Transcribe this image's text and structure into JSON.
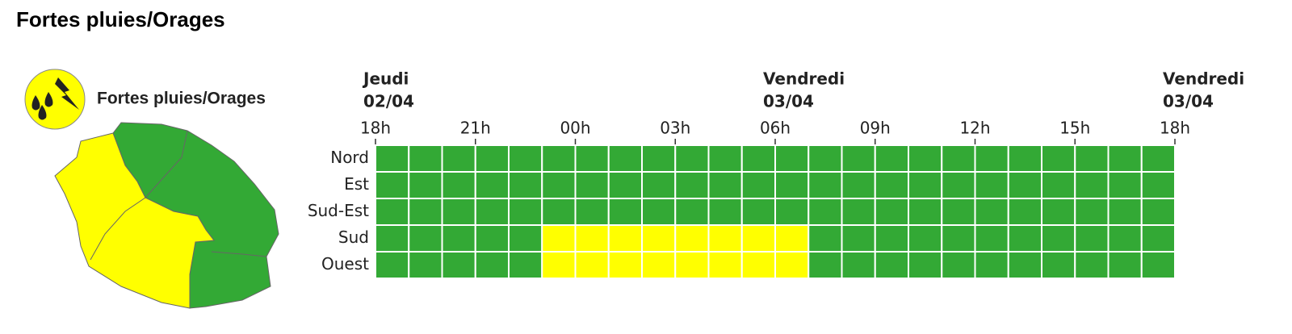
{
  "header": {
    "title": "Fortes pluies/Orages"
  },
  "legend": {
    "label": "Fortes pluies/Orages"
  },
  "days": [
    {
      "day": "Jeudi",
      "date": "02/04"
    },
    {
      "day": "Vendredi",
      "date": "03/04"
    },
    {
      "day": "Vendredi",
      "date": "03/04"
    }
  ],
  "hours": [
    "18h",
    "21h",
    "00h",
    "03h",
    "06h",
    "09h",
    "12h",
    "15h",
    "18h"
  ],
  "rows": [
    {
      "name": "Nord",
      "cells": [
        "#33a935",
        "#33a935",
        "#33a935",
        "#33a935",
        "#33a935",
        "#33a935",
        "#33a935",
        "#33a935",
        "#33a935",
        "#33a935",
        "#33a935",
        "#33a935",
        "#33a935",
        "#33a935",
        "#33a935",
        "#33a935",
        "#33a935",
        "#33a935",
        "#33a935",
        "#33a935",
        "#33a935",
        "#33a935",
        "#33a935",
        "#33a935"
      ]
    },
    {
      "name": "Est",
      "cells": [
        "#33a935",
        "#33a935",
        "#33a935",
        "#33a935",
        "#33a935",
        "#33a935",
        "#33a935",
        "#33a935",
        "#33a935",
        "#33a935",
        "#33a935",
        "#33a935",
        "#33a935",
        "#33a935",
        "#33a935",
        "#33a935",
        "#33a935",
        "#33a935",
        "#33a935",
        "#33a935",
        "#33a935",
        "#33a935",
        "#33a935",
        "#33a935"
      ]
    },
    {
      "name": "Sud-Est",
      "cells": [
        "#33a935",
        "#33a935",
        "#33a935",
        "#33a935",
        "#33a935",
        "#33a935",
        "#33a935",
        "#33a935",
        "#33a935",
        "#33a935",
        "#33a935",
        "#33a935",
        "#33a935",
        "#33a935",
        "#33a935",
        "#33a935",
        "#33a935",
        "#33a935",
        "#33a935",
        "#33a935",
        "#33a935",
        "#33a935",
        "#33a935",
        "#33a935"
      ]
    },
    {
      "name": "Sud",
      "cells": [
        "#33a935",
        "#33a935",
        "#33a935",
        "#33a935",
        "#33a935",
        "#ffff00",
        "#ffff00",
        "#ffff00",
        "#ffff00",
        "#ffff00",
        "#ffff00",
        "#ffff00",
        "#ffff00",
        "#33a935",
        "#33a935",
        "#33a935",
        "#33a935",
        "#33a935",
        "#33a935",
        "#33a935",
        "#33a935",
        "#33a935",
        "#33a935",
        "#33a935"
      ]
    },
    {
      "name": "Ouest",
      "cells": [
        "#33a935",
        "#33a935",
        "#33a935",
        "#33a935",
        "#33a935",
        "#ffff00",
        "#ffff00",
        "#ffff00",
        "#ffff00",
        "#ffff00",
        "#ffff00",
        "#ffff00",
        "#ffff00",
        "#33a935",
        "#33a935",
        "#33a935",
        "#33a935",
        "#33a935",
        "#33a935",
        "#33a935",
        "#33a935",
        "#33a935",
        "#33a935",
        "#33a935"
      ]
    }
  ]
}
